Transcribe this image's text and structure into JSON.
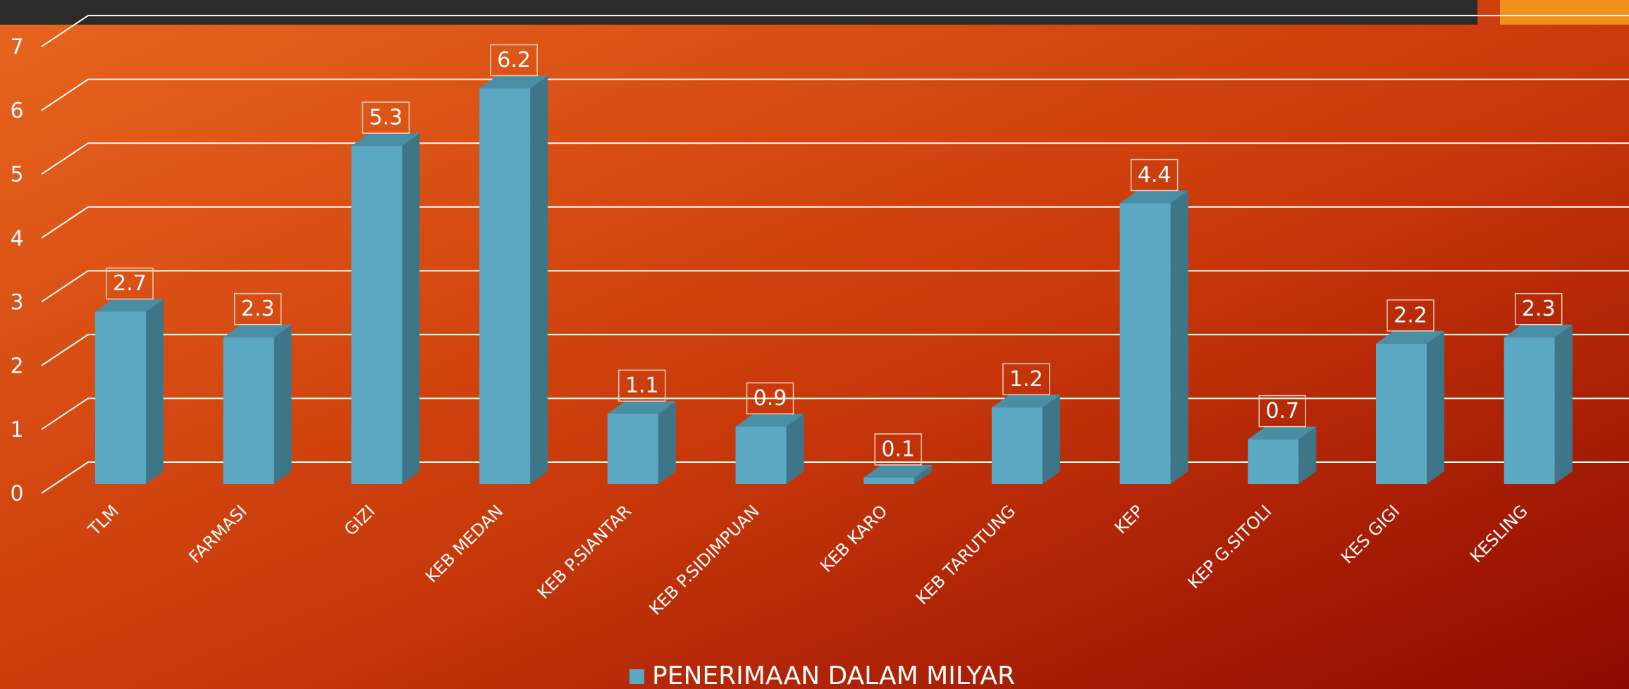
{
  "chart_data": {
    "type": "bar3d",
    "categories": [
      "TLM",
      "FARMASI",
      "GIZI",
      "KEB MEDAN",
      "KEB P.SIANTAR",
      "KEB P.SIDIMPUAN",
      "KEB KARO",
      "KEB TARUTUNG",
      "KEP",
      "KEP G.SITOLI",
      "KES GIGI",
      "KESLING"
    ],
    "series": [
      {
        "name": "PENERIMAAN DALAM MILYAR",
        "color": "#5aa8c4",
        "values": [
          2.7,
          2.3,
          5.3,
          6.2,
          1.1,
          0.9,
          0.1,
          1.2,
          4.4,
          0.7,
          2.2,
          2.3
        ]
      }
    ],
    "ylim": [
      0,
      7
    ],
    "yticks": [
      0,
      1,
      2,
      3,
      4,
      5,
      6,
      7
    ],
    "grid": true,
    "legend": "bottom"
  }
}
